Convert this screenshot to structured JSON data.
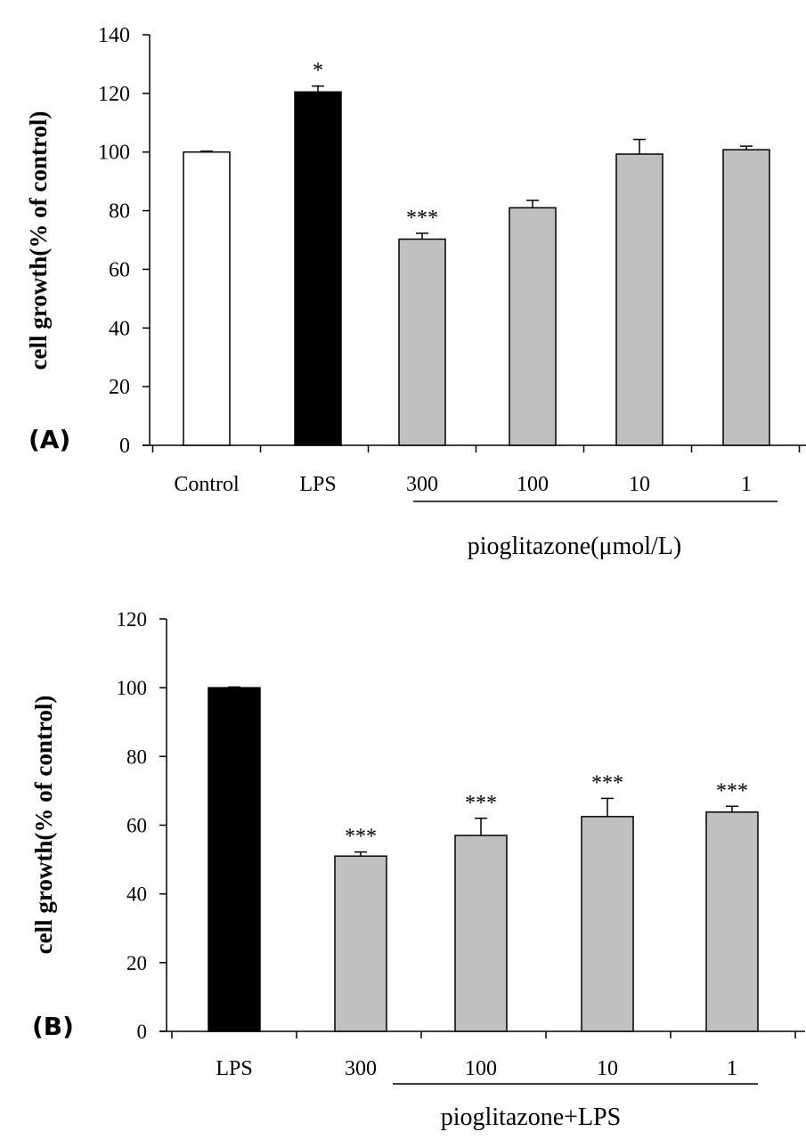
{
  "chart_data": [
    {
      "type": "bar",
      "panel_label": "(A)",
      "ylabel": "cell growth(% of control)",
      "ylim": [
        0,
        140
      ],
      "yticks": [
        0,
        20,
        40,
        60,
        80,
        100,
        120,
        140
      ],
      "categories": [
        "Control",
        "LPS",
        "300",
        "100",
        "10",
        "1"
      ],
      "values": [
        100,
        120.5,
        70.3,
        81,
        99.3,
        100.8
      ],
      "errors": [
        0.3,
        2,
        2,
        2.5,
        5,
        1.2
      ],
      "fills": [
        "#ffffff",
        "#000000",
        "#c0c0c0",
        "#c0c0c0",
        "#c0c0c0",
        "#c0c0c0"
      ],
      "significance": [
        "",
        "*",
        "***",
        "",
        "",
        ""
      ],
      "group_label": "pioglitazone(μmol/L)",
      "group_span": [
        2,
        5
      ]
    },
    {
      "type": "bar",
      "panel_label": "(B)",
      "ylabel": "cell growth(% of control)",
      "ylim": [
        0,
        120
      ],
      "yticks": [
        0,
        20,
        40,
        60,
        80,
        100,
        120
      ],
      "categories": [
        "LPS",
        "300",
        "100",
        "10",
        "1"
      ],
      "values": [
        100,
        51,
        57,
        62.5,
        63.8
      ],
      "errors": [
        0.2,
        1.2,
        5,
        5.3,
        1.7
      ],
      "fills": [
        "#000000",
        "#c0c0c0",
        "#c0c0c0",
        "#c0c0c0",
        "#c0c0c0"
      ],
      "significance": [
        "",
        "***",
        "***",
        "***",
        "***"
      ],
      "group_label": "pioglitazone+LPS",
      "group_span": [
        1,
        4
      ]
    }
  ]
}
